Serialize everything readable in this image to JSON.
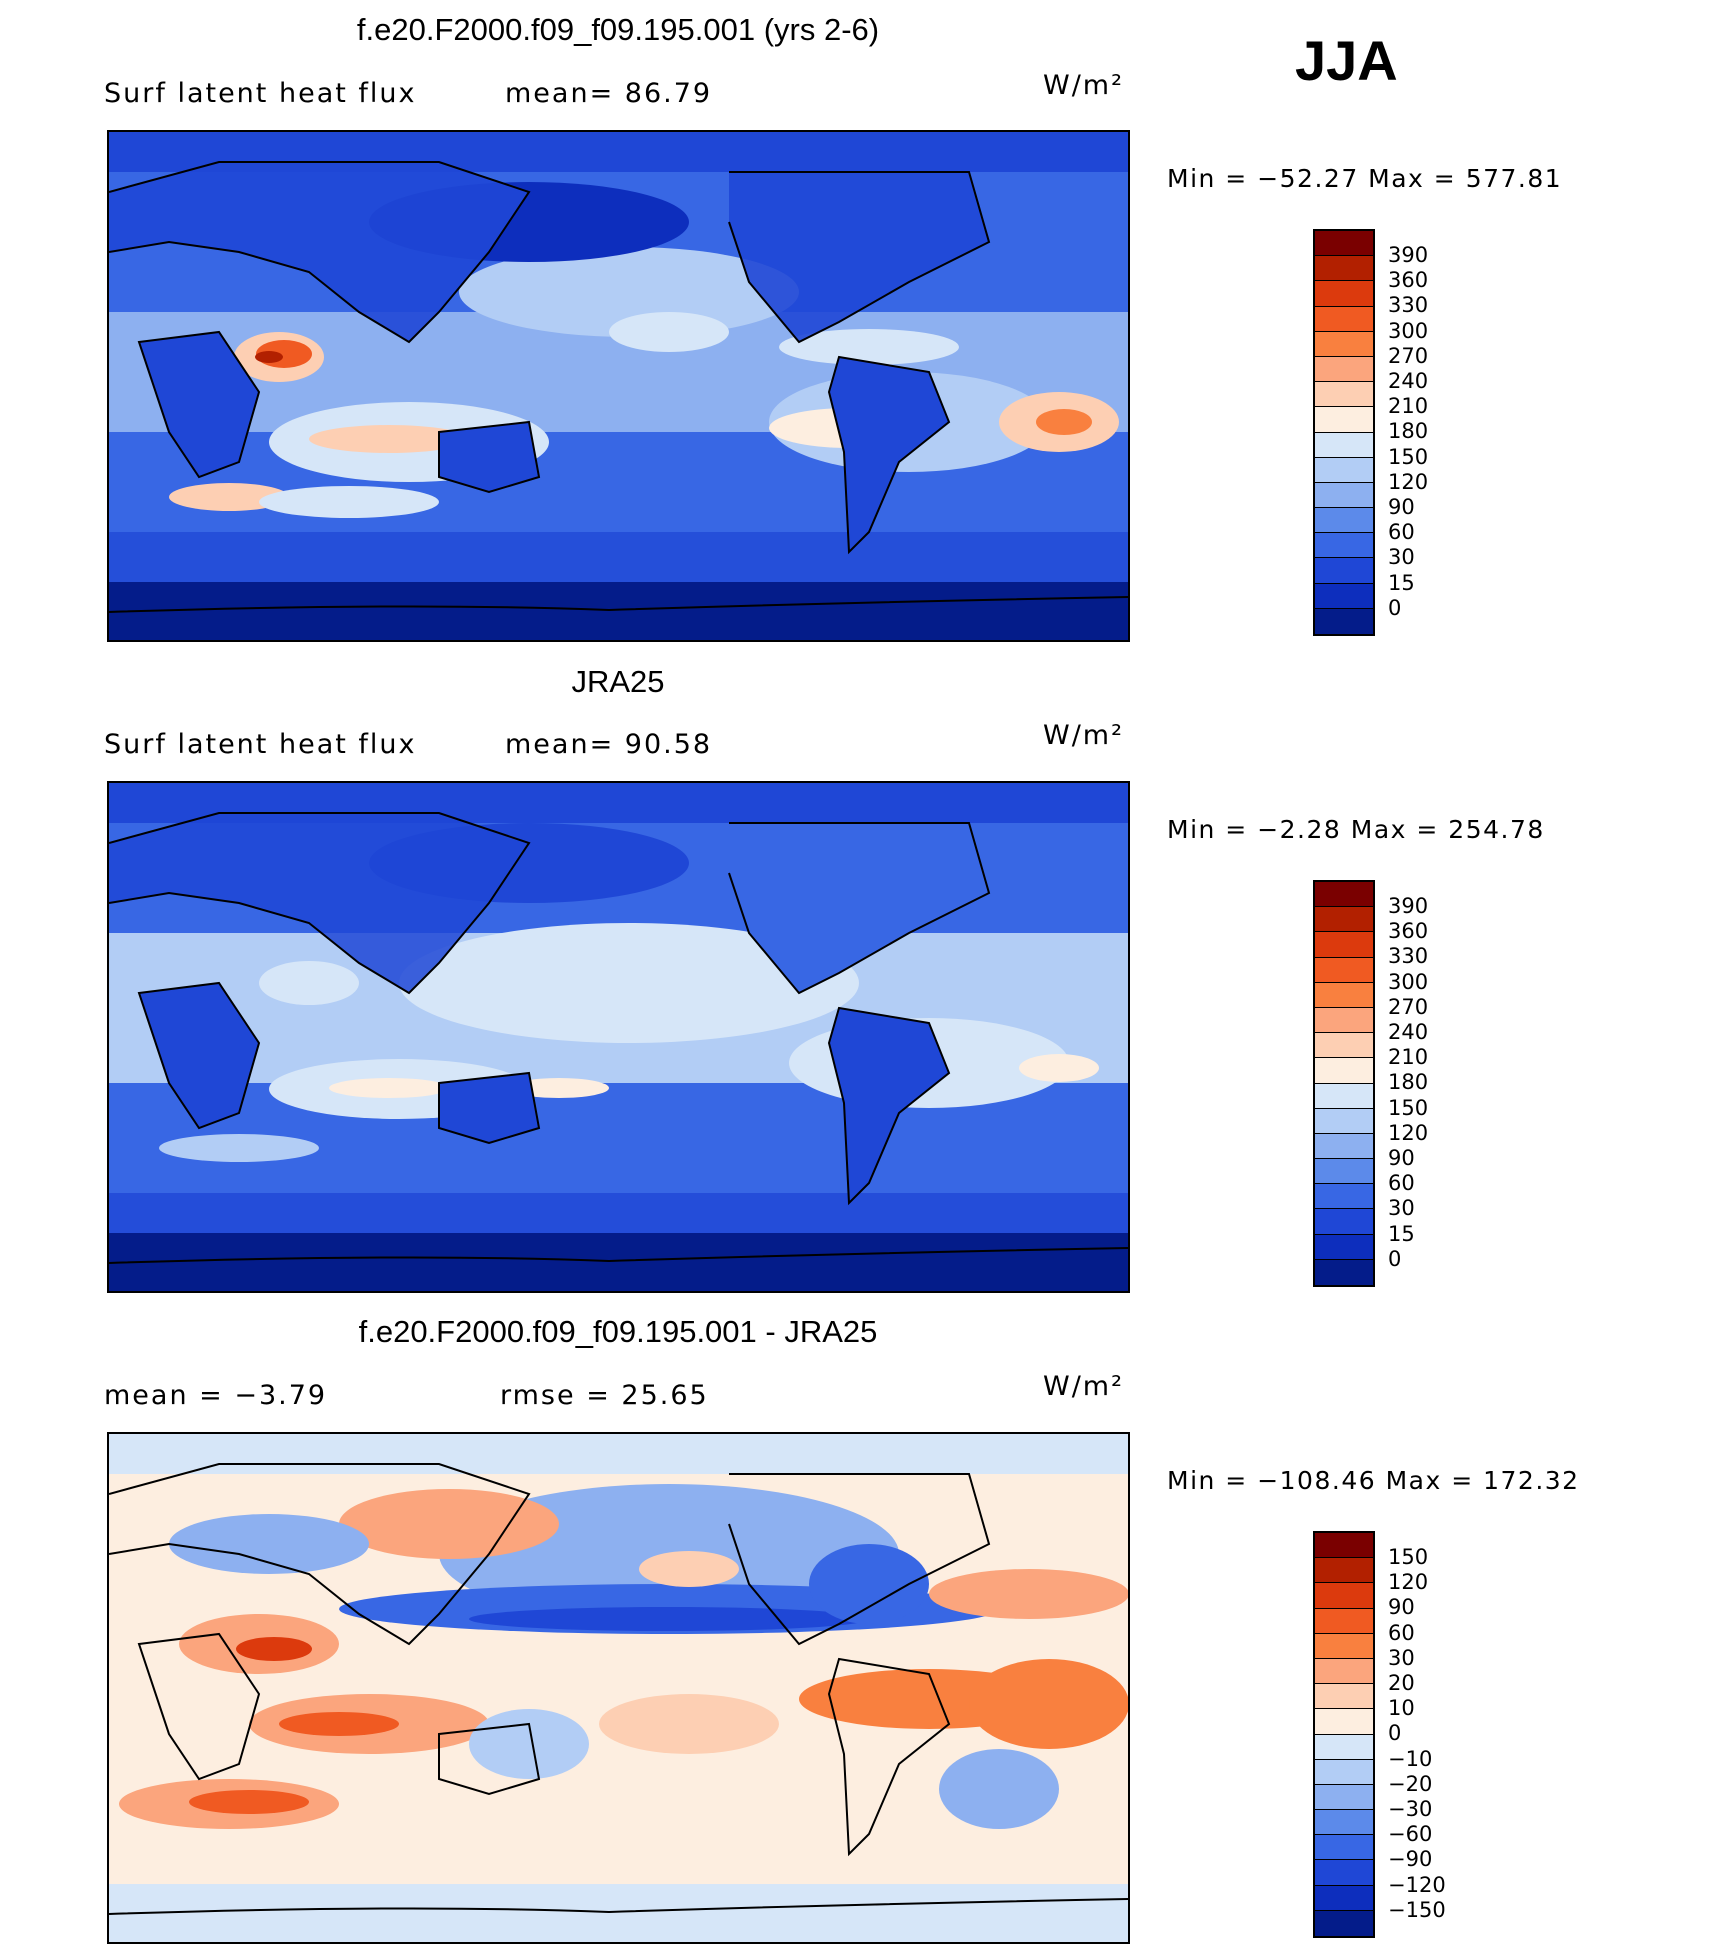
{
  "season": "JJA",
  "panels": [
    {
      "title": "f.e20.F2000.f09_f09.195.001 (yrs 2-6)",
      "sub_left": "Surf latent heat flux",
      "sub_mid": "mean=   86.79",
      "units": "W/m²",
      "minmax": "Min = −52.27 Max = 577.81",
      "colorbar_labels": [
        "390",
        "360",
        "330",
        "300",
        "270",
        "240",
        "210",
        "180",
        "150",
        "120",
        "90",
        "60",
        "30",
        "15",
        "0"
      ]
    },
    {
      "title": "JRA25",
      "sub_left": "Surf latent heat flux",
      "sub_mid": "mean=   90.58",
      "units": "W/m²",
      "minmax": "Min =   −2.28 Max = 254.78",
      "colorbar_labels": [
        "390",
        "360",
        "330",
        "300",
        "270",
        "240",
        "210",
        "180",
        "150",
        "120",
        "90",
        "60",
        "30",
        "15",
        "0"
      ]
    },
    {
      "title": "f.e20.F2000.f09_f09.195.001 - JRA25",
      "sub_left": "mean =   −3.79",
      "sub_mid": "rmse =   25.65",
      "units": "W/m²",
      "minmax": "Min = −108.46 Max = 172.32",
      "colorbar_labels": [
        "150",
        "120",
        "90",
        "60",
        "30",
        "20",
        "10",
        "0",
        "−10",
        "−20",
        "−30",
        "−60",
        "−90",
        "−120",
        "−150"
      ]
    }
  ],
  "colors": {
    "abs_scale": [
      "#7a0000",
      "#b22000",
      "#dc3a0d",
      "#f05a22",
      "#f9803f",
      "#fba57d",
      "#fdcfb3",
      "#fdeee0",
      "#d6e6f8",
      "#b2cdf5",
      "#8db0f0",
      "#5c8aea",
      "#3867e4",
      "#1f47d6",
      "#0d2ebd",
      "#041c8a"
    ],
    "diff_scale": [
      "#7a0000",
      "#b22000",
      "#dc3a0d",
      "#f05a22",
      "#f9803f",
      "#fba57d",
      "#fdcfb3",
      "#fdeee0",
      "#d6e6f8",
      "#b2cdf5",
      "#8db0f0",
      "#5c8aea",
      "#3867e4",
      "#1f47d6",
      "#0d2ebd",
      "#041c8a"
    ]
  }
}
